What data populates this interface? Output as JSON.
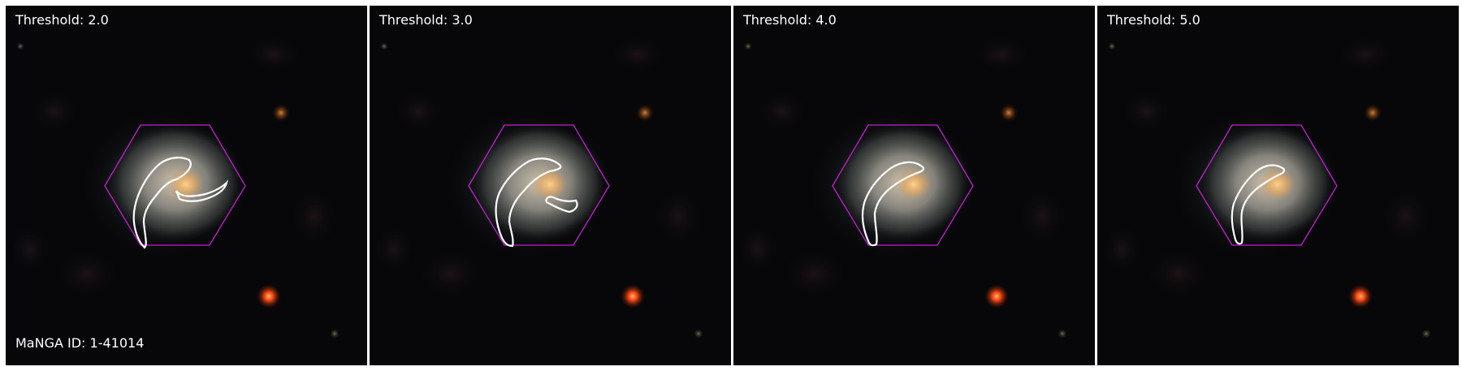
{
  "panels": [
    {
      "label": "Threshold: 2.0"
    },
    {
      "label": "Threshold: 3.0"
    },
    {
      "label": "Threshold: 4.0"
    },
    {
      "label": "Threshold: 5.0"
    }
  ],
  "manga_id": "MaNGA ID: 1-41014",
  "colors": {
    "background": "#07070a",
    "separator": "#ffffff",
    "hexagon": "#c21fd0",
    "contour": "#ffffff",
    "galaxy_core": "#e6b070",
    "galaxy_disk": "#a7a3a0",
    "red_star": "#ff4a12",
    "orange_star": "#c87a2a"
  }
}
